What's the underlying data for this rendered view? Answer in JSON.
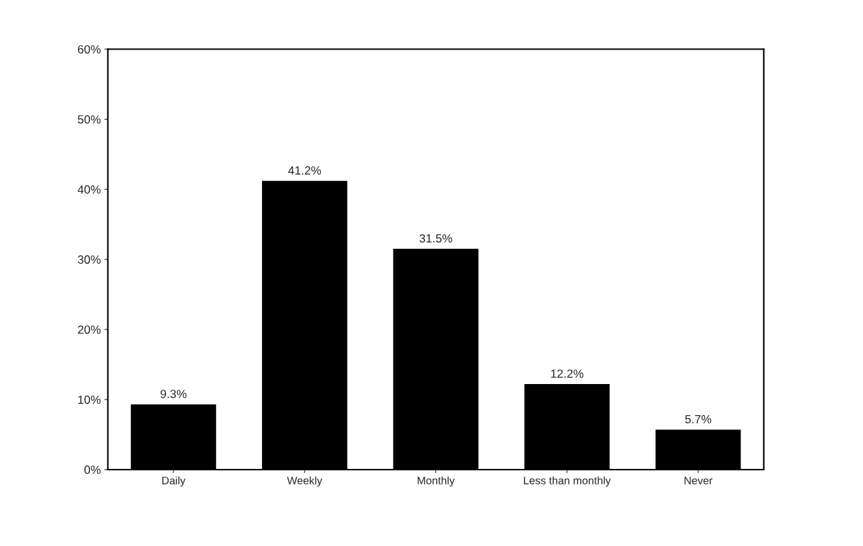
{
  "chart_data": {
    "type": "bar",
    "categories": [
      "Daily",
      "Weekly",
      "Monthly",
      "Less than monthly",
      "Never"
    ],
    "values": [
      9.3,
      41.2,
      31.5,
      12.2,
      5.7
    ],
    "color": "#000000",
    "value_labels": [
      "9.3%",
      "41.2%",
      "31.5%",
      "12.2%",
      "5.7%"
    ],
    "ylim": [
      0,
      60
    ],
    "yticks": [
      {
        "value": 0,
        "label": "0%"
      },
      {
        "value": 10,
        "label": "10%"
      },
      {
        "value": 20,
        "label": "20%"
      },
      {
        "value": 30,
        "label": "30%"
      },
      {
        "value": 40,
        "label": "40%"
      },
      {
        "value": 50,
        "label": "50%"
      },
      {
        "value": 60,
        "label": "60%"
      }
    ],
    "grid": false,
    "legend": false
  }
}
